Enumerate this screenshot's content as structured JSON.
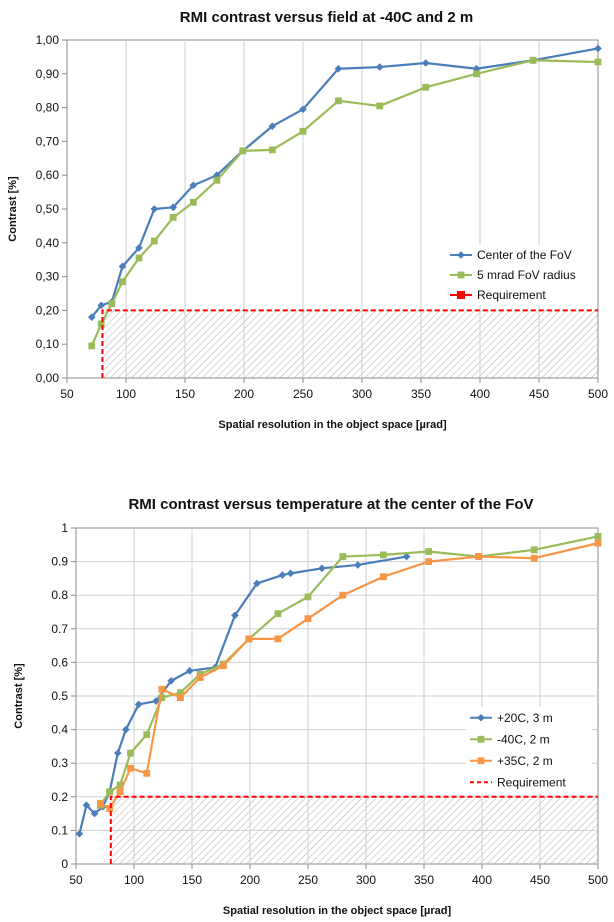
{
  "chart_data": [
    {
      "type": "line",
      "title": "RMI contrast versus field at -40C and 2 m",
      "xlabel": "Spatial resolution in the object space [µrad]",
      "ylabel": "Contrast [%]",
      "xlim": [
        50,
        500
      ],
      "ylim": [
        0,
        1
      ],
      "xticks": [
        "50",
        "100",
        "150",
        "200",
        "250",
        "300",
        "350",
        "400",
        "450",
        "500"
      ],
      "yticks": [
        "0,00",
        "0,10",
        "0,20",
        "0,30",
        "0,40",
        "0,50",
        "0,60",
        "0,70",
        "0,80",
        "0,90",
        "1,00"
      ],
      "grid": "vertical",
      "legend_position": "right",
      "series": [
        {
          "name": "Center of the FoV",
          "color": "#4a7ebb",
          "marker": "diamond",
          "x": [
            71,
            79,
            88,
            97,
            111,
            124,
            140,
            157,
            177,
            199,
            224,
            250,
            280,
            315,
            354,
            397,
            445,
            500
          ],
          "y": [
            0.18,
            0.215,
            0.225,
            0.33,
            0.385,
            0.5,
            0.505,
            0.57,
            0.6,
            0.672,
            0.745,
            0.795,
            0.915,
            0.92,
            0.932,
            0.915,
            0.94,
            0.975
          ]
        },
        {
          "name": "5 mrad FoV radius",
          "color": "#9bbb59",
          "marker": "square",
          "x": [
            71,
            79,
            88,
            97,
            111,
            124,
            140,
            157,
            177,
            199,
            224,
            250,
            280,
            315,
            354,
            397,
            445,
            500
          ],
          "y": [
            0.095,
            0.16,
            0.22,
            0.285,
            0.355,
            0.405,
            0.475,
            0.52,
            0.585,
            0.672,
            0.675,
            0.73,
            0.82,
            0.805,
            0.86,
            0.9,
            0.94,
            0.935
          ]
        },
        {
          "name": "Requirement",
          "color": "#ff0000",
          "style": "dashed",
          "x": [
            80,
            80,
            500
          ],
          "y": [
            0,
            0.2,
            0.2
          ]
        }
      ]
    },
    {
      "type": "line",
      "title": "RMI contrast versus temperature at the center of the FoV",
      "xlabel": "Spatial resolution in the object space [µrad]",
      "ylabel": "Contrast [%]",
      "xlim": [
        50,
        500
      ],
      "ylim": [
        0,
        1
      ],
      "xticks": [
        "50",
        "100",
        "150",
        "200",
        "250",
        "300",
        "350",
        "400",
        "450",
        "500"
      ],
      "yticks": [
        "0",
        "0.1",
        "0.2",
        "0.3",
        "0.4",
        "0.5",
        "0.6",
        "0.7",
        "0.8",
        "0.9",
        "1"
      ],
      "grid": "both",
      "legend_position": "right",
      "series": [
        {
          "name": "+20C, 3 m",
          "color": "#4a7ebb",
          "marker": "diamond",
          "x": [
            53,
            59,
            66,
            73,
            79,
            86,
            93,
            104,
            119,
            132,
            148,
            170,
            187,
            206,
            228,
            235,
            262,
            293,
            335
          ],
          "y": [
            0.09,
            0.175,
            0.15,
            0.17,
            0.215,
            0.33,
            0.4,
            0.475,
            0.485,
            0.545,
            0.575,
            0.585,
            0.74,
            0.835,
            0.86,
            0.865,
            0.88,
            0.89,
            0.915
          ]
        },
        {
          "name": "-40C, 2 m",
          "color": "#9bbb59",
          "marker": "square",
          "x": [
            71,
            79,
            88,
            97,
            111,
            124,
            140,
            157,
            177,
            199,
            224,
            250,
            280,
            315,
            354,
            397,
            445,
            500
          ],
          "y": [
            0.175,
            0.215,
            0.235,
            0.33,
            0.385,
            0.495,
            0.51,
            0.565,
            0.595,
            0.67,
            0.745,
            0.795,
            0.915,
            0.92,
            0.93,
            0.915,
            0.935,
            0.975
          ]
        },
        {
          "name": "+35C, 2 m",
          "color": "#f79646",
          "marker": "square",
          "x": [
            71,
            79,
            88,
            97,
            111,
            124,
            140,
            157,
            177,
            199,
            224,
            250,
            280,
            315,
            354,
            397,
            445,
            500
          ],
          "y": [
            0.18,
            0.165,
            0.215,
            0.285,
            0.27,
            0.52,
            0.495,
            0.555,
            0.59,
            0.67,
            0.67,
            0.73,
            0.8,
            0.855,
            0.9,
            0.915,
            0.91,
            0.955
          ]
        },
        {
          "name": "Requirement",
          "color": "#ff0000",
          "style": "dashed",
          "x": [
            80,
            80,
            500
          ],
          "y": [
            0,
            0.2,
            0.2
          ]
        }
      ]
    }
  ]
}
